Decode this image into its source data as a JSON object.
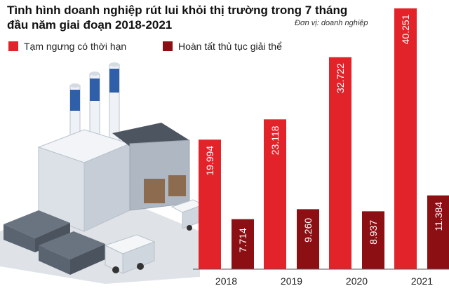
{
  "chart_data": {
    "type": "bar",
    "title": "Tình hình doanh nghiệp rút lui khỏi thị trường trong 7 tháng đầu năm giai đoạn 2018-2021",
    "unit_note": "Đơn vị: doanh nghiệp",
    "categories": [
      "2018",
      "2019",
      "2020",
      "2021"
    ],
    "series": [
      {
        "name": "Tạm ngưng có thời hạn",
        "values": [
          19994,
          23118,
          32722,
          40251
        ],
        "labels": [
          "19.994",
          "23.118",
          "32.722",
          "40.251"
        ],
        "color": "#e3232a"
      },
      {
        "name": "Hoàn tất thủ tục giải thể",
        "values": [
          7714,
          9260,
          8937,
          11384
        ],
        "labels": [
          "7.714",
          "9.260",
          "8.937",
          "11.384"
        ],
        "color": "#8c0f14"
      }
    ],
    "ylim": [
      0,
      41000
    ],
    "grid": false,
    "legend_position": "top-left"
  },
  "colors": {
    "bar_primary": "#e3232a",
    "bar_secondary": "#8c0f14",
    "axis": "#555555"
  },
  "decoration": {
    "illustration": "factory-illustration"
  }
}
